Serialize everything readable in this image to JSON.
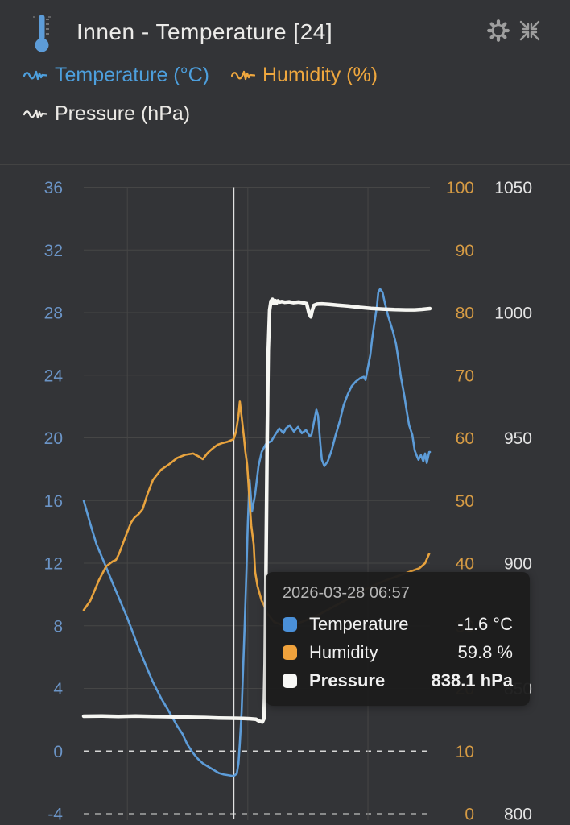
{
  "header": {
    "title": "Innen - Temperature [24]"
  },
  "legend": [
    {
      "label": "Temperature (°C)",
      "color": "#4d9fdd"
    },
    {
      "label": "Humidity (%)",
      "color": "#efa73e"
    },
    {
      "label": "Pressure (hPa)",
      "color": "#ebe9e5"
    }
  ],
  "tooltip": {
    "timestamp": "2026-03-28 06:57",
    "rows": [
      {
        "label": "Temperature",
        "value": "-1.6 °C",
        "color": "#4a90d9",
        "emphasis": false
      },
      {
        "label": "Humidity",
        "value": "59.8 %",
        "color": "#f0a23c",
        "emphasis": false
      },
      {
        "label": "Pressure",
        "value": "838.1 hPa",
        "color": "#f8f8f6",
        "emphasis": true
      }
    ]
  },
  "chart_data": {
    "type": "line",
    "grid": true,
    "grid_color": "#464646",
    "zero_dash_color": "#d6d6d6",
    "edge_dash_color": "#a6a6a6",
    "cursor_color": "#e2e2e2",
    "cursor_x_pct": 43.3,
    "x_gridlines_pct": [
      12.6,
      47.4,
      82.1
    ],
    "axes": {
      "temperature": {
        "label": "Temperature (°C)",
        "min": -4,
        "max": 36,
        "ticks": [
          36,
          32,
          28,
          24,
          20,
          16,
          12,
          8,
          4,
          0,
          -4
        ],
        "dashed_ticks": [
          0,
          -4
        ],
        "color": "#6b94c6",
        "side": "left"
      },
      "humidity": {
        "label": "Humidity (%)",
        "min": 0,
        "max": 100,
        "ticks": [
          100,
          90,
          80,
          70,
          60,
          50,
          40,
          30,
          20,
          10,
          0
        ],
        "color": "#d69b44",
        "side": "right"
      },
      "pressure": {
        "label": "Pressure (hPa)",
        "min": 800,
        "max": 1050,
        "ticks": [
          1050,
          1000,
          950,
          900,
          850,
          800
        ],
        "color": "#e5e5e5",
        "side": "right-outer"
      }
    },
    "series": [
      {
        "name": "Temperature",
        "unit": "°C",
        "axis": "temperature",
        "color": "#5d9cd8",
        "points": [
          [
            0,
            16.0
          ],
          [
            1.9,
            14.5
          ],
          [
            3.7,
            13.2
          ],
          [
            6,
            12.0
          ],
          [
            8.4,
            10.7
          ],
          [
            10.7,
            9.5
          ],
          [
            12.6,
            8.5
          ],
          [
            15.3,
            6.9
          ],
          [
            17.7,
            5.6
          ],
          [
            20,
            4.4
          ],
          [
            22.3,
            3.4
          ],
          [
            24.7,
            2.5
          ],
          [
            27,
            1.6
          ],
          [
            28.5,
            1.1
          ],
          [
            30,
            0.4
          ],
          [
            31.5,
            -0.1
          ],
          [
            33,
            -0.5
          ],
          [
            34.5,
            -0.8
          ],
          [
            36,
            -1.0
          ],
          [
            37.5,
            -1.2
          ],
          [
            39,
            -1.4
          ],
          [
            40.5,
            -1.5
          ],
          [
            42,
            -1.55
          ],
          [
            43.3,
            -1.6
          ],
          [
            44.2,
            -1.45
          ],
          [
            44.7,
            -0.8
          ],
          [
            45.1,
            0.5
          ],
          [
            45.6,
            2.5
          ],
          [
            46,
            5.0
          ],
          [
            46.5,
            8.0
          ],
          [
            47,
            11.5
          ],
          [
            47.4,
            14.5
          ],
          [
            47.9,
            17.3
          ],
          [
            48.6,
            15.3
          ],
          [
            49.5,
            16.4
          ],
          [
            50.5,
            18.2
          ],
          [
            51.4,
            19.1
          ],
          [
            52.6,
            19.6
          ],
          [
            54.2,
            19.8
          ],
          [
            55.3,
            20.2
          ],
          [
            56.5,
            20.6
          ],
          [
            57.7,
            20.3
          ],
          [
            58.4,
            20.6
          ],
          [
            59.5,
            20.8
          ],
          [
            60.7,
            20.4
          ],
          [
            61.9,
            20.7
          ],
          [
            63,
            20.3
          ],
          [
            64.2,
            20.5
          ],
          [
            65.3,
            20.1
          ],
          [
            65.8,
            20.2
          ],
          [
            67.2,
            21.8
          ],
          [
            67.7,
            21.4
          ],
          [
            68.4,
            19.5
          ],
          [
            68.8,
            18.6
          ],
          [
            69.5,
            18.2
          ],
          [
            70.5,
            18.5
          ],
          [
            71.6,
            19.2
          ],
          [
            72.8,
            20.2
          ],
          [
            74,
            21.1
          ],
          [
            75.1,
            22.1
          ],
          [
            76.3,
            22.8
          ],
          [
            77.4,
            23.3
          ],
          [
            78.6,
            23.6
          ],
          [
            79.8,
            23.8
          ],
          [
            80.9,
            23.9
          ],
          [
            81.4,
            23.7
          ],
          [
            82.1,
            24.5
          ],
          [
            82.8,
            25.3
          ],
          [
            83.3,
            26.3
          ],
          [
            84,
            27.4
          ],
          [
            84.7,
            28.4
          ],
          [
            85.1,
            29.3
          ],
          [
            85.6,
            29.5
          ],
          [
            86.3,
            29.3
          ],
          [
            87,
            28.6
          ],
          [
            87.9,
            27.8
          ],
          [
            88.6,
            27.3
          ],
          [
            89.3,
            26.8
          ],
          [
            90.2,
            26.0
          ],
          [
            90.9,
            25.0
          ],
          [
            91.6,
            23.9
          ],
          [
            92.6,
            22.7
          ],
          [
            93.3,
            21.7
          ],
          [
            94,
            20.8
          ],
          [
            94.9,
            20.2
          ],
          [
            95.6,
            19.2
          ],
          [
            96.3,
            18.8
          ],
          [
            96.7,
            18.6
          ],
          [
            97.4,
            18.9
          ],
          [
            98.1,
            18.5
          ],
          [
            98.6,
            19.0
          ],
          [
            99.1,
            18.4
          ],
          [
            99.8,
            19.1
          ],
          [
            100,
            19.1
          ]
        ]
      },
      {
        "name": "Humidity",
        "unit": "%",
        "axis": "humidity",
        "color": "#e8a33e",
        "points": [
          [
            0,
            32.5
          ],
          [
            1.9,
            34.0
          ],
          [
            4.4,
            37.3
          ],
          [
            6.5,
            39.5
          ],
          [
            8.4,
            40.3
          ],
          [
            9.3,
            40.5
          ],
          [
            10.2,
            41.5
          ],
          [
            12.6,
            45.0
          ],
          [
            13.7,
            46.5
          ],
          [
            14.7,
            47.3
          ],
          [
            15.8,
            47.8
          ],
          [
            17,
            48.6
          ],
          [
            18.4,
            51.0
          ],
          [
            20,
            53.3
          ],
          [
            22.3,
            54.9
          ],
          [
            24.7,
            55.8
          ],
          [
            27,
            56.8
          ],
          [
            29.3,
            57.3
          ],
          [
            31.6,
            57.5
          ],
          [
            33.3,
            57.0
          ],
          [
            34.4,
            56.6
          ],
          [
            35.8,
            57.6
          ],
          [
            37,
            58.2
          ],
          [
            38.6,
            58.9
          ],
          [
            40.2,
            59.2
          ],
          [
            41.6,
            59.4
          ],
          [
            43.3,
            59.8
          ],
          [
            44,
            61.0
          ],
          [
            44.7,
            63.5
          ],
          [
            45.1,
            65.8
          ],
          [
            45.8,
            62.5
          ],
          [
            46.3,
            60.0
          ],
          [
            46.7,
            57.8
          ],
          [
            47.2,
            55.7
          ],
          [
            47.9,
            50.0
          ],
          [
            48.4,
            46.0
          ],
          [
            49.1,
            43.0
          ],
          [
            49.5,
            38.6
          ],
          [
            50.2,
            36.3
          ],
          [
            51.4,
            34.0
          ],
          [
            51.9,
            33.5
          ],
          [
            53,
            32.0
          ],
          [
            55,
            30.6
          ],
          [
            58,
            30.0
          ],
          [
            62,
            30.4
          ],
          [
            67,
            31.5
          ],
          [
            72,
            33.0
          ],
          [
            77,
            34.5
          ],
          [
            82,
            36.0
          ],
          [
            87,
            37.2
          ],
          [
            92,
            38.2
          ],
          [
            95,
            38.8
          ],
          [
            97,
            39.2
          ],
          [
            98.6,
            40.0
          ],
          [
            99.8,
            41.5
          ]
        ]
      },
      {
        "name": "Pressure",
        "unit": "hPa",
        "axis": "pressure",
        "color": "#f6f6f2",
        "points": [
          [
            0,
            838.9
          ],
          [
            5,
            839.0
          ],
          [
            10,
            838.8
          ],
          [
            15,
            839.0
          ],
          [
            20,
            838.8
          ],
          [
            25,
            838.7
          ],
          [
            30,
            838.5
          ],
          [
            35,
            838.4
          ],
          [
            39,
            838.2
          ],
          [
            43.3,
            838.1
          ],
          [
            46,
            838.0
          ],
          [
            48,
            837.9
          ],
          [
            49.8,
            837.7
          ],
          [
            50.7,
            836.9
          ],
          [
            51.6,
            836.6
          ],
          [
            52.1,
            838.0
          ],
          [
            52.4,
            860.0
          ],
          [
            52.7,
            905.0
          ],
          [
            53,
            950.0
          ],
          [
            53.3,
            985.0
          ],
          [
            53.7,
            1001.0
          ],
          [
            54.1,
            1004.6
          ],
          [
            54.5,
            1005.3
          ],
          [
            54.9,
            1003.6
          ],
          [
            55.3,
            1004.8
          ],
          [
            55.7,
            1003.8
          ],
          [
            56.1,
            1004.7
          ],
          [
            56.6,
            1004.2
          ],
          [
            57.2,
            1004.4
          ],
          [
            58.1,
            1004.1
          ],
          [
            59.3,
            1004.3
          ],
          [
            60.5,
            1004.0
          ],
          [
            62.1,
            1004.2
          ],
          [
            63.5,
            1003.9
          ],
          [
            64.4,
            1003.6
          ],
          [
            65.1,
            999.6
          ],
          [
            65.6,
            998.3
          ],
          [
            66,
            1000.8
          ],
          [
            66.5,
            1002.9
          ],
          [
            67.4,
            1003.4
          ],
          [
            68.8,
            1003.5
          ],
          [
            70.9,
            1003.3
          ],
          [
            73.3,
            1003.0
          ],
          [
            76.5,
            1002.6
          ],
          [
            79.8,
            1002.1
          ],
          [
            83,
            1001.7
          ],
          [
            86.3,
            1001.4
          ],
          [
            89.8,
            1001.2
          ],
          [
            93,
            1001.1
          ],
          [
            95.6,
            1001.1
          ],
          [
            97.7,
            1001.3
          ],
          [
            100,
            1001.6
          ]
        ]
      }
    ]
  }
}
